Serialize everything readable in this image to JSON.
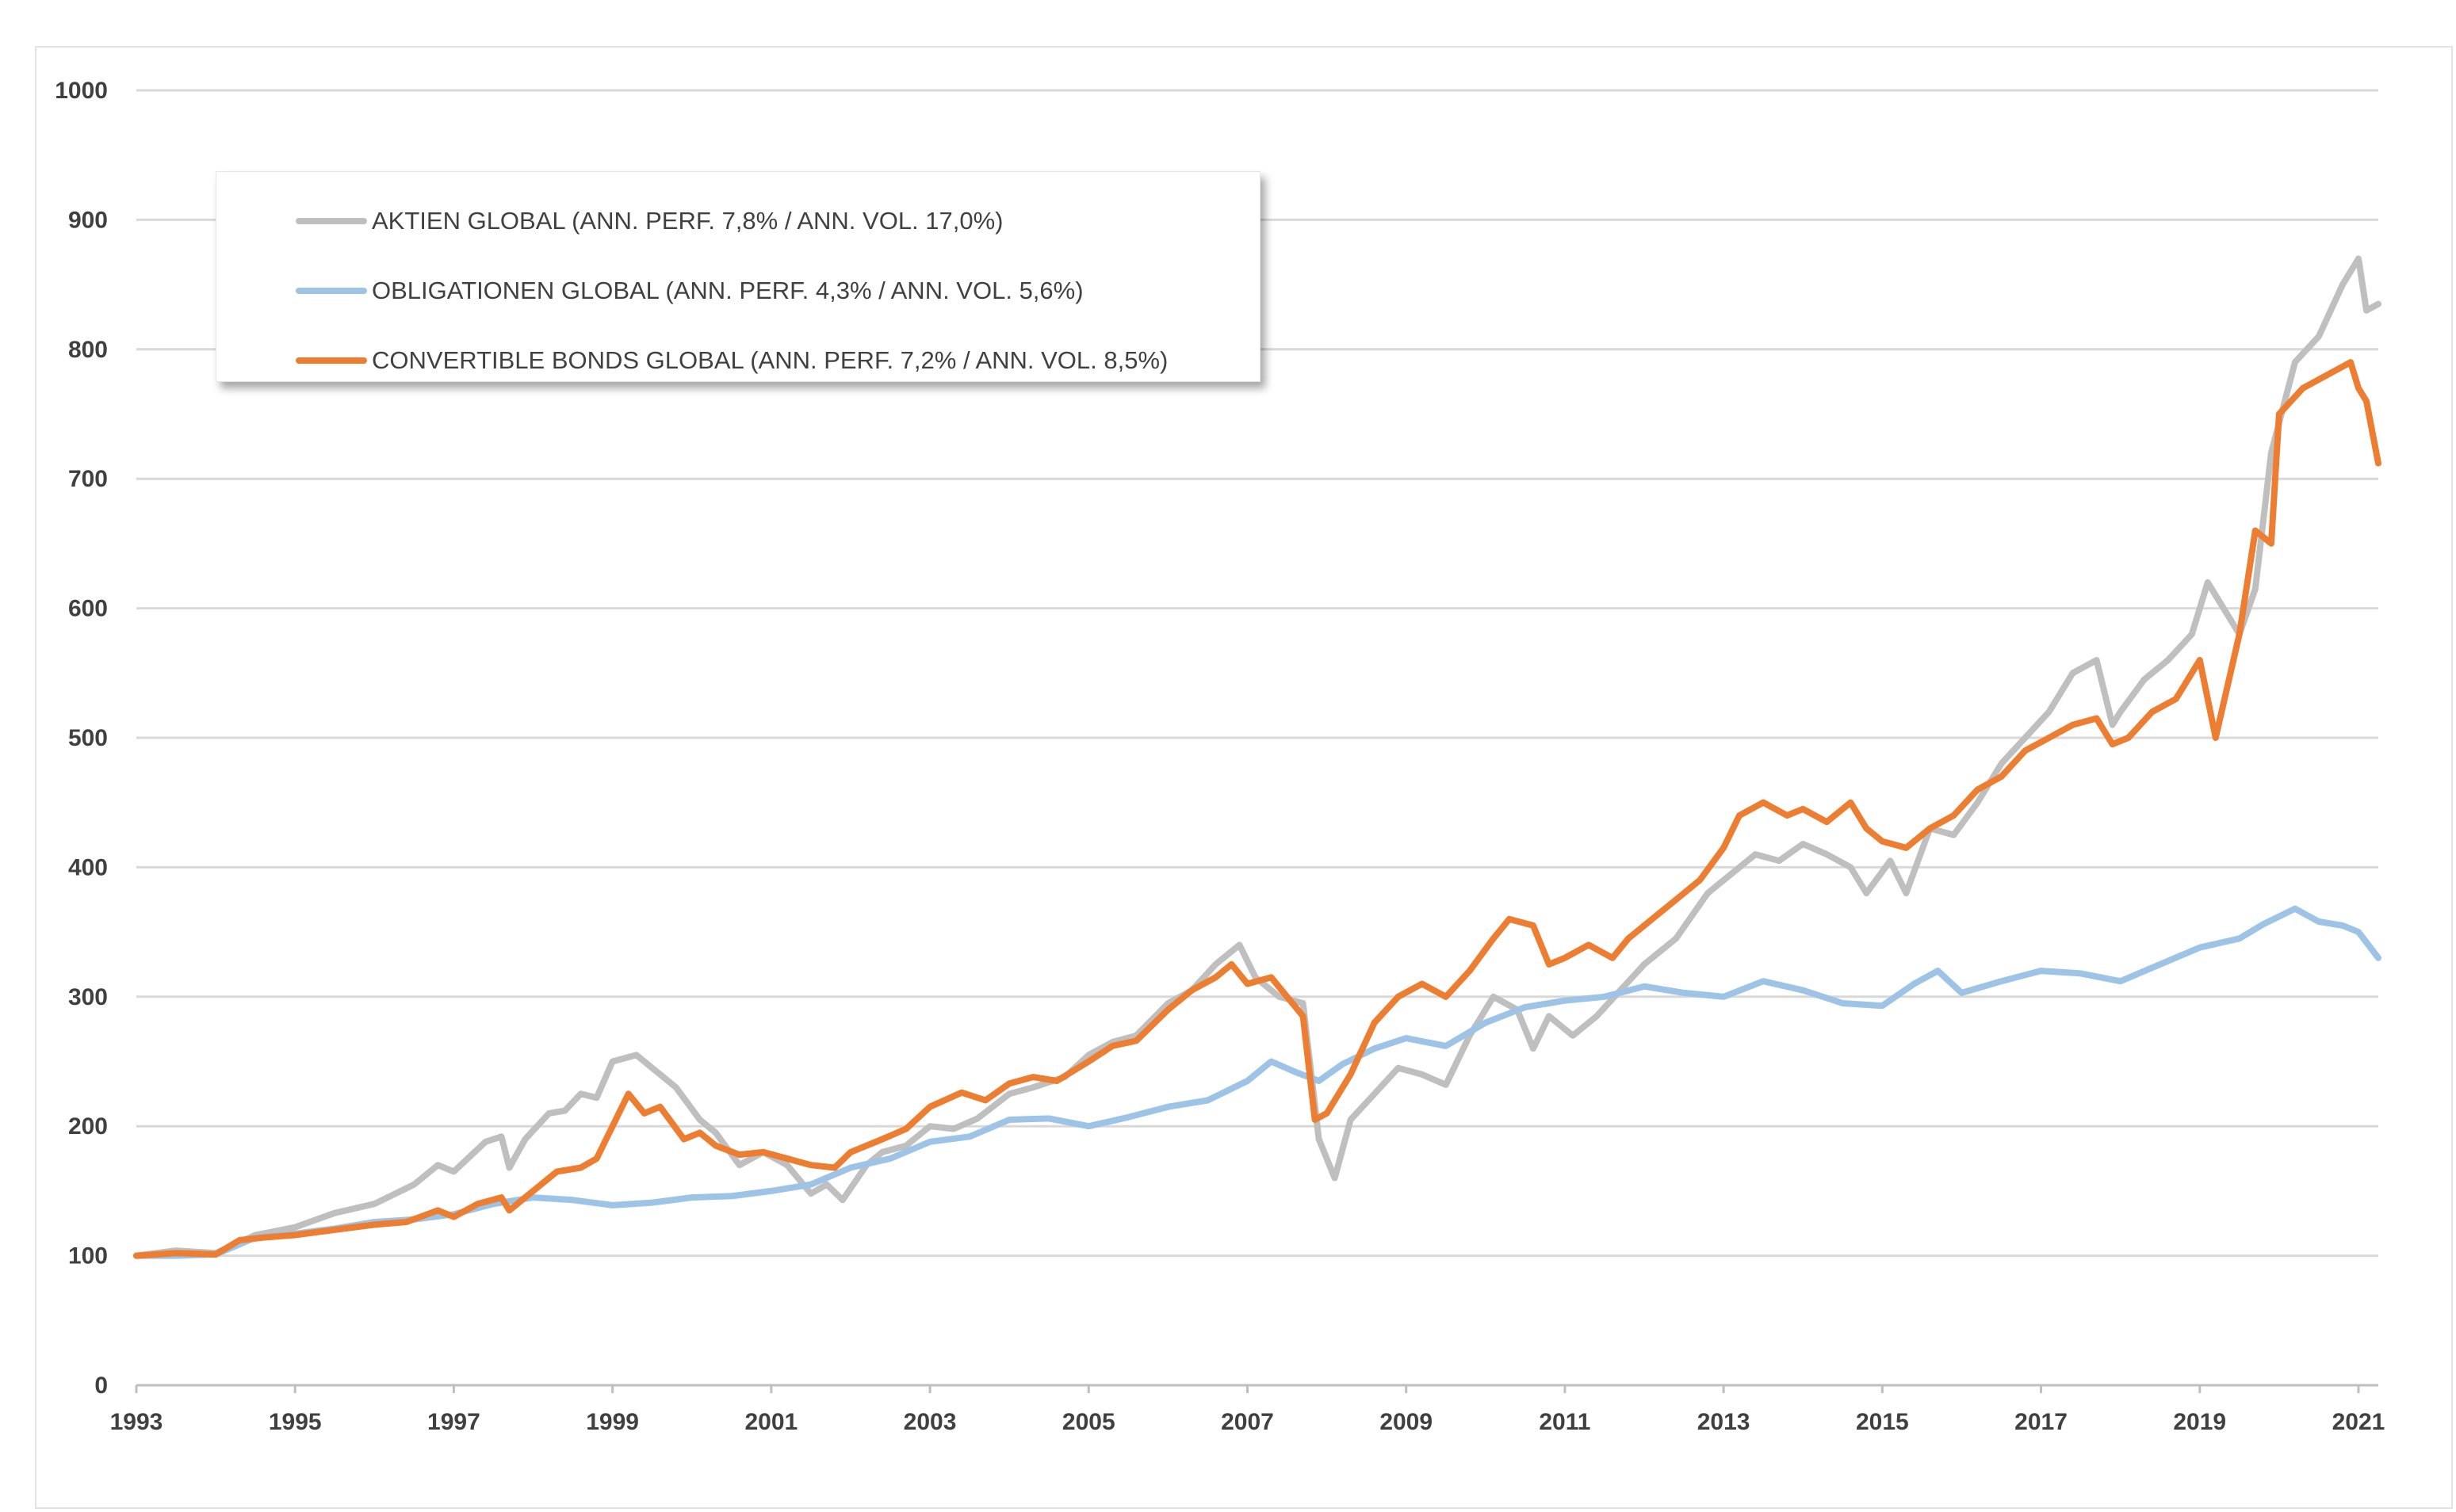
{
  "chart_data": {
    "type": "line",
    "title": "",
    "xlabel": "",
    "ylabel": "",
    "ylim": [
      0,
      1000
    ],
    "xlim": [
      1993.0,
      2021.25
    ],
    "yticks": [
      "0",
      "100",
      "200",
      "300",
      "400",
      "500",
      "600",
      "700",
      "800",
      "900",
      "1000"
    ],
    "xticks": [
      "1993",
      "1995",
      "1997",
      "1999",
      "2001",
      "2003",
      "2005",
      "2007",
      "2009",
      "2011",
      "2013",
      "2015",
      "2017",
      "2019",
      "2021"
    ],
    "grid": "horizontal",
    "legend_position": "top-left",
    "series": [
      {
        "name": "AKTIEN GLOBAL (ANN. PERF. 7,8% / ANN. VOL. 17,0%)",
        "color": "#bfbfbf",
        "x": [
          1993.0,
          1993.5,
          1994.0,
          1994.5,
          1995.0,
          1995.5,
          1996.0,
          1996.5,
          1996.8,
          1997.0,
          1997.4,
          1997.6,
          1997.7,
          1997.9,
          1998.2,
          1998.4,
          1998.6,
          1998.8,
          1999.0,
          1999.3,
          1999.5,
          1999.8,
          2000.1,
          2000.3,
          2000.6,
          2000.9,
          2001.2,
          2001.5,
          2001.7,
          2001.9,
          2002.2,
          2002.4,
          2002.7,
          2003.0,
          2003.3,
          2003.6,
          2004.0,
          2004.3,
          2004.7,
          2005.0,
          2005.3,
          2005.6,
          2006.0,
          2006.3,
          2006.6,
          2006.9,
          2007.1,
          2007.4,
          2007.7,
          2007.9,
          2008.1,
          2008.3,
          2008.6,
          2008.9,
          2009.2,
          2009.5,
          2009.8,
          2010.1,
          2010.4,
          2010.6,
          2010.8,
          2011.1,
          2011.4,
          2011.7,
          2012.0,
          2012.4,
          2012.8,
          2013.1,
          2013.4,
          2013.7,
          2014.0,
          2014.3,
          2014.6,
          2014.8,
          2015.1,
          2015.3,
          2015.6,
          2015.9,
          2016.2,
          2016.5,
          2016.8,
          2017.1,
          2017.4,
          2017.7,
          2017.9,
          2018.0,
          2018.3,
          2018.6,
          2018.9,
          2019.1,
          2019.3,
          2019.5,
          2019.7,
          2019.9,
          2020.2,
          2020.5,
          2020.8,
          2021.0,
          2021.1,
          2021.25
        ],
        "values": [
          100,
          104,
          102,
          116,
          122,
          133,
          140,
          155,
          170,
          165,
          188,
          192,
          168,
          190,
          210,
          212,
          225,
          222,
          250,
          255,
          245,
          230,
          205,
          195,
          170,
          180,
          170,
          148,
          155,
          143,
          170,
          180,
          185,
          200,
          198,
          206,
          225,
          230,
          238,
          255,
          265,
          270,
          295,
          305,
          325,
          340,
          315,
          300,
          295,
          190,
          160,
          205,
          225,
          245,
          240,
          232,
          270,
          300,
          290,
          260,
          285,
          270,
          285,
          305,
          325,
          345,
          380,
          395,
          410,
          405,
          418,
          410,
          400,
          380,
          405,
          380,
          430,
          425,
          450,
          480,
          500,
          520,
          550,
          560,
          510,
          520,
          545,
          560,
          580,
          620,
          600,
          580,
          615,
          720,
          790,
          810,
          850,
          870,
          830,
          835
        ]
      },
      {
        "name": "OBLIGATIONEN GLOBAL (ANN. PERF. 4,3% / ANN. VOL. 5,6%)",
        "color": "#9dc3e6",
        "x": [
          1993.0,
          1993.5,
          1994.0,
          1994.5,
          1995.0,
          1995.5,
          1996.0,
          1996.5,
          1997.0,
          1997.5,
          1998.0,
          1998.5,
          1999.0,
          1999.5,
          2000.0,
          2000.5,
          2001.0,
          2001.5,
          2002.0,
          2002.5,
          2003.0,
          2003.5,
          2004.0,
          2004.5,
          2005.0,
          2005.5,
          2006.0,
          2006.5,
          2007.0,
          2007.3,
          2007.6,
          2007.9,
          2008.2,
          2008.6,
          2009.0,
          2009.5,
          2010.0,
          2010.5,
          2011.0,
          2011.5,
          2012.0,
          2012.5,
          2013.0,
          2013.5,
          2014.0,
          2014.5,
          2015.0,
          2015.4,
          2015.7,
          2016.0,
          2016.5,
          2017.0,
          2017.5,
          2018.0,
          2018.5,
          2019.0,
          2019.5,
          2019.8,
          2020.2,
          2020.5,
          2020.8,
          2021.0,
          2021.25
        ],
        "values": [
          100,
          100,
          101,
          114,
          117,
          121,
          126,
          128,
          132,
          140,
          145,
          143,
          139,
          141,
          145,
          146,
          150,
          155,
          168,
          175,
          188,
          192,
          205,
          206,
          200,
          207,
          215,
          220,
          235,
          250,
          242,
          235,
          248,
          260,
          268,
          262,
          280,
          292,
          297,
          300,
          308,
          303,
          300,
          312,
          305,
          295,
          293,
          310,
          320,
          303,
          312,
          320,
          318,
          312,
          325,
          338,
          345,
          356,
          368,
          358,
          355,
          350,
          330
        ]
      },
      {
        "name": "CONVERTIBLE BONDS GLOBAL (ANN. PERF. 7,2% / ANN. VOL. 8,5%)",
        "color": "#ed7d31",
        "x": [
          1993.0,
          1993.5,
          1994.0,
          1994.3,
          1994.6,
          1995.0,
          1995.5,
          1996.0,
          1996.4,
          1996.8,
          1997.0,
          1997.3,
          1997.6,
          1997.7,
          1998.0,
          1998.3,
          1998.6,
          1998.8,
          1999.0,
          1999.2,
          1999.4,
          1999.6,
          1999.9,
          2000.1,
          2000.3,
          2000.6,
          2000.9,
          2001.2,
          2001.5,
          2001.8,
          2002.0,
          2002.4,
          2002.7,
          2003.0,
          2003.4,
          2003.7,
          2004.0,
          2004.3,
          2004.6,
          2005.0,
          2005.3,
          2005.6,
          2006.0,
          2006.3,
          2006.6,
          2006.8,
          2007.0,
          2007.3,
          2007.5,
          2007.7,
          2007.85,
          2008.0,
          2008.3,
          2008.6,
          2008.9,
          2009.2,
          2009.5,
          2009.8,
          2010.1,
          2010.3,
          2010.6,
          2010.8,
          2011.0,
          2011.3,
          2011.6,
          2011.8,
          2012.1,
          2012.4,
          2012.7,
          2013.0,
          2013.2,
          2013.5,
          2013.8,
          2014.0,
          2014.3,
          2014.6,
          2014.8,
          2015.0,
          2015.3,
          2015.6,
          2015.9,
          2016.2,
          2016.5,
          2016.8,
          2017.1,
          2017.4,
          2017.7,
          2017.9,
          2018.1,
          2018.4,
          2018.7,
          2019.0,
          2019.2,
          2019.35,
          2019.5,
          2019.7,
          2019.9,
          2020.0,
          2020.3,
          2020.6,
          2020.9,
          2021.0,
          2021.1,
          2021.25
        ],
        "values": [
          100,
          102,
          101,
          112,
          114,
          116,
          120,
          124,
          126,
          135,
          130,
          140,
          145,
          135,
          150,
          165,
          168,
          175,
          200,
          225,
          210,
          215,
          190,
          195,
          185,
          178,
          180,
          175,
          170,
          168,
          180,
          190,
          198,
          215,
          226,
          220,
          233,
          238,
          235,
          250,
          262,
          266,
          290,
          305,
          315,
          325,
          310,
          315,
          300,
          285,
          205,
          210,
          240,
          280,
          300,
          310,
          300,
          320,
          345,
          360,
          355,
          325,
          330,
          340,
          330,
          345,
          360,
          375,
          390,
          415,
          440,
          450,
          440,
          445,
          435,
          450,
          430,
          420,
          415,
          430,
          440,
          460,
          470,
          490,
          500,
          510,
          515,
          495,
          500,
          520,
          530,
          560,
          500,
          540,
          580,
          660,
          650,
          750,
          770,
          780,
          790,
          770,
          760,
          712
        ]
      }
    ]
  }
}
